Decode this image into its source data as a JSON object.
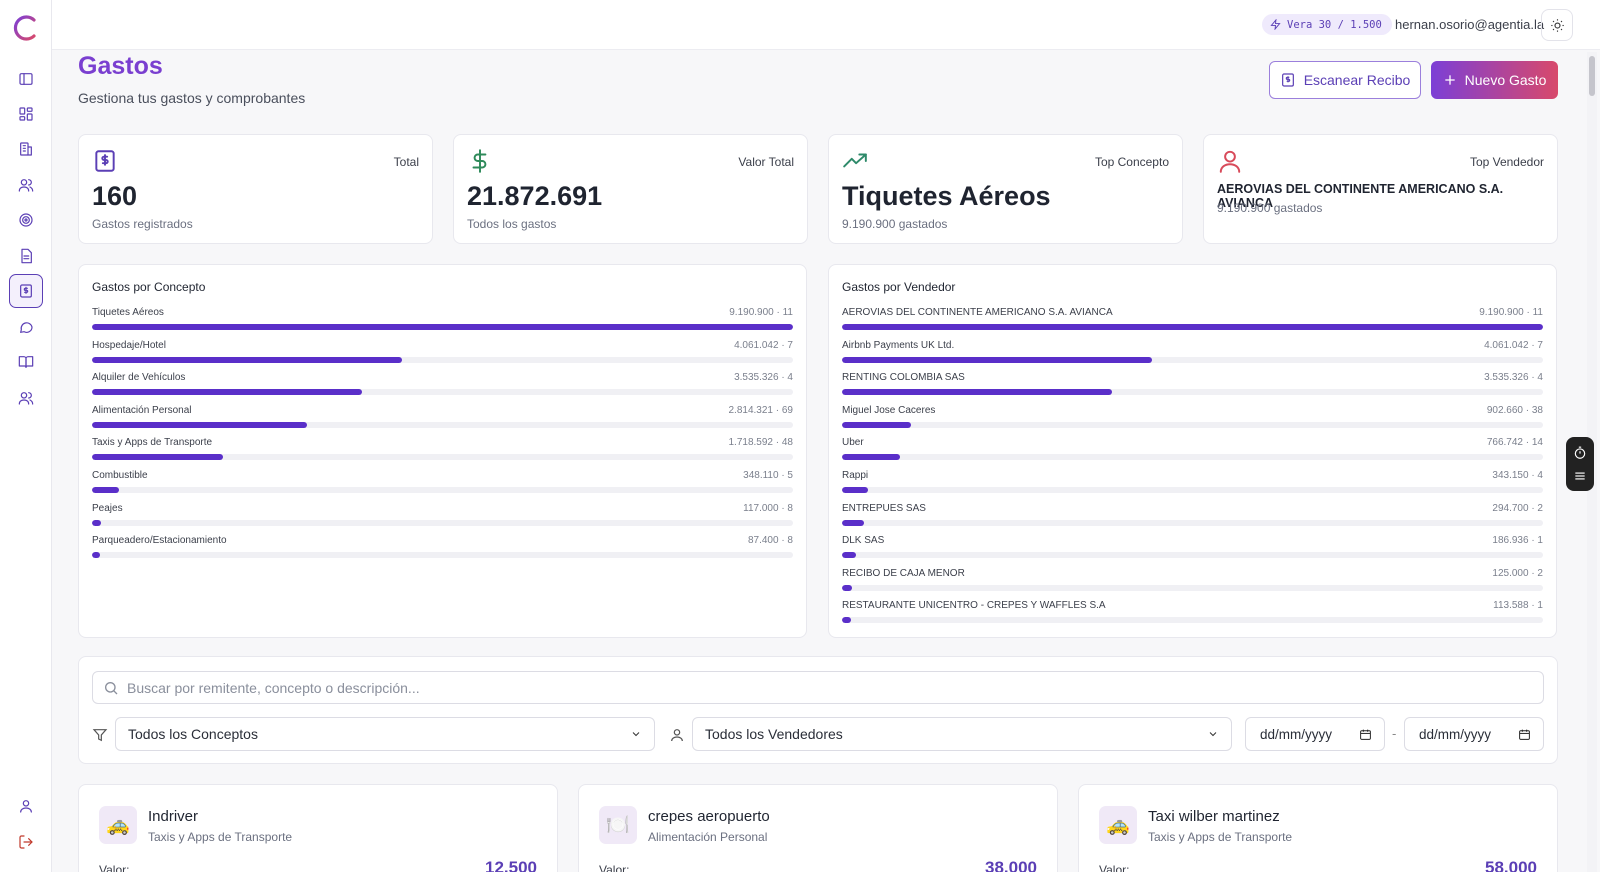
{
  "topbar": {
    "credits": "Vera 30 / 1.500",
    "user_email": "hernan.osorio@agentia.la"
  },
  "header": {
    "title": "Gastos",
    "subtitle": "Gestiona tus gastos y comprobantes",
    "scan_label": "Escanear Recibo",
    "new_label": "Nuevo Gasto"
  },
  "stats": [
    {
      "label": "Total",
      "value": "160",
      "sub": "Gastos registrados",
      "icon": "receipt-icon"
    },
    {
      "label": "Valor Total",
      "value": "21.872.691",
      "sub": "Todos los gastos",
      "icon": "dollar-icon"
    },
    {
      "label": "Top Concepto",
      "value": "Tiquetes Aéreos",
      "sub": "9.190.900 gastados",
      "icon": "trending-up-icon"
    },
    {
      "label": "Top Vendedor",
      "value": "AEROVIAS DEL CONTINENTE AMERICANO S.A. AVIANCA",
      "sub": "9.190.900 gastados",
      "icon": "user-icon"
    }
  ],
  "chart_data": [
    {
      "type": "bar",
      "title": "Gastos por Concepto",
      "categories": [
        "Tiquetes Aéreos",
        "Hospedaje/Hotel",
        "Alquiler de Vehículos",
        "Alimentación Personal",
        "Taxis y Apps de Transporte",
        "Combustible",
        "Peajes",
        "Parqueadero/Estacionamiento"
      ],
      "values": [
        9190900,
        4061042,
        3535326,
        2814321,
        1718592,
        348110,
        117000,
        87400
      ],
      "counts": [
        11,
        7,
        4,
        69,
        48,
        5,
        8,
        8
      ],
      "labels": [
        "9.190.900",
        "4.061.042",
        "3.535.326",
        "2.814.321",
        "1.718.592",
        "348.110",
        "117.000",
        "87.400"
      ]
    },
    {
      "type": "bar",
      "title": "Gastos por Vendedor",
      "categories": [
        "AEROVIAS DEL CONTINENTE AMERICANO S.A. AVIANCA",
        "Airbnb Payments UK Ltd.",
        "RENTING COLOMBIA SAS",
        "Miguel Jose Caceres",
        "Uber",
        "Rappi",
        "ENTREPUES SAS",
        "DLK SAS",
        "RECIBO DE CAJA MENOR",
        "RESTAURANTE UNICENTRO - CREPES Y WAFFLES S.A"
      ],
      "values": [
        9190900,
        4061042,
        3535326,
        902660,
        766742,
        343150,
        294700,
        186936,
        125000,
        113588
      ],
      "counts": [
        11,
        7,
        4,
        38,
        14,
        4,
        2,
        1,
        2,
        1
      ],
      "labels": [
        "9.190.900",
        "4.061.042",
        "3.535.326",
        "902.660",
        "766.742",
        "343.150",
        "294.700",
        "186.936",
        "125.000",
        "113.588"
      ]
    }
  ],
  "filters": {
    "search_placeholder": "Buscar por remitente, concepto o descripción...",
    "concept": "Todos los Conceptos",
    "vendor": "Todos los Vendedores",
    "date_from": "dd/mm/yyyy",
    "date_to": "dd/mm/yyyy",
    "separator": "-"
  },
  "expenses": [
    {
      "emoji": "🚕",
      "title": "Indriver",
      "category": "Taxis y Apps de Transporte",
      "value_label": "Valor:",
      "value": "12.500"
    },
    {
      "emoji": "🍽️",
      "title": "crepes aeropuerto",
      "category": "Alimentación Personal",
      "value_label": "Valor:",
      "value": "38.000"
    },
    {
      "emoji": "🚕",
      "title": "Taxi wilber martinez",
      "category": "Taxis y Apps de Transporte",
      "value_label": "Valor:",
      "value": "58.000"
    }
  ],
  "colors": {
    "accent": "#7a3fd0",
    "bar": "#5a2fc9",
    "danger": "#c0392b"
  }
}
